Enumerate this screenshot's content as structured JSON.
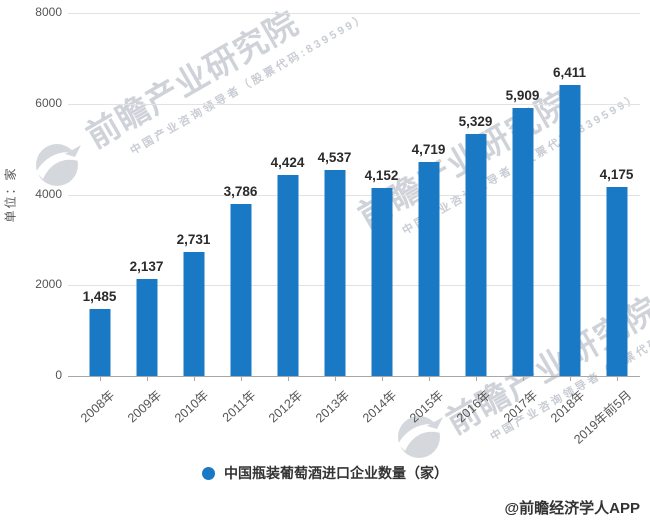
{
  "chart_data": {
    "type": "bar",
    "title": "",
    "categories": [
      "2008年",
      "2009年",
      "2010年",
      "2011年",
      "2012年",
      "2013年",
      "2014年",
      "2015年",
      "2016年",
      "2017年",
      "2018年",
      "2019年前5月"
    ],
    "values": [
      1485,
      2137,
      2731,
      3786,
      4424,
      4537,
      4152,
      4719,
      5329,
      5909,
      6411,
      4175
    ],
    "value_labels": [
      "1,485",
      "2,137",
      "2,731",
      "3,786",
      "4,424",
      "4,537",
      "4,152",
      "4,719",
      "5,329",
      "5,909",
      "6,411",
      "4,175"
    ],
    "series_name": "中国瓶装葡萄酒进口企业数量（家）",
    "xlabel": "",
    "ylabel": "单位：家",
    "ylim": [
      0,
      8000
    ],
    "yticks": [
      8000,
      6000,
      4000,
      2000,
      0
    ],
    "grid": true,
    "legend_position": "bottom-center"
  },
  "y_axis": {
    "title": "单位：家"
  },
  "legend": {
    "label": "中国瓶装葡萄酒进口企业数量（家）"
  },
  "watermark": {
    "brand": "前瞻产业研究院",
    "tagline": "中国产业咨询领导者（股票代码:839599）"
  },
  "attribution": {
    "text": "@前瞻经济学人APP"
  },
  "colors": {
    "bar": "#1a79c4",
    "grid_line": "#e2e2e2",
    "axis_line": "#a8a8a8",
    "tick_label": "#555555",
    "value_label": "#2b2b2b",
    "watermark_gray": "#9ba3af"
  }
}
